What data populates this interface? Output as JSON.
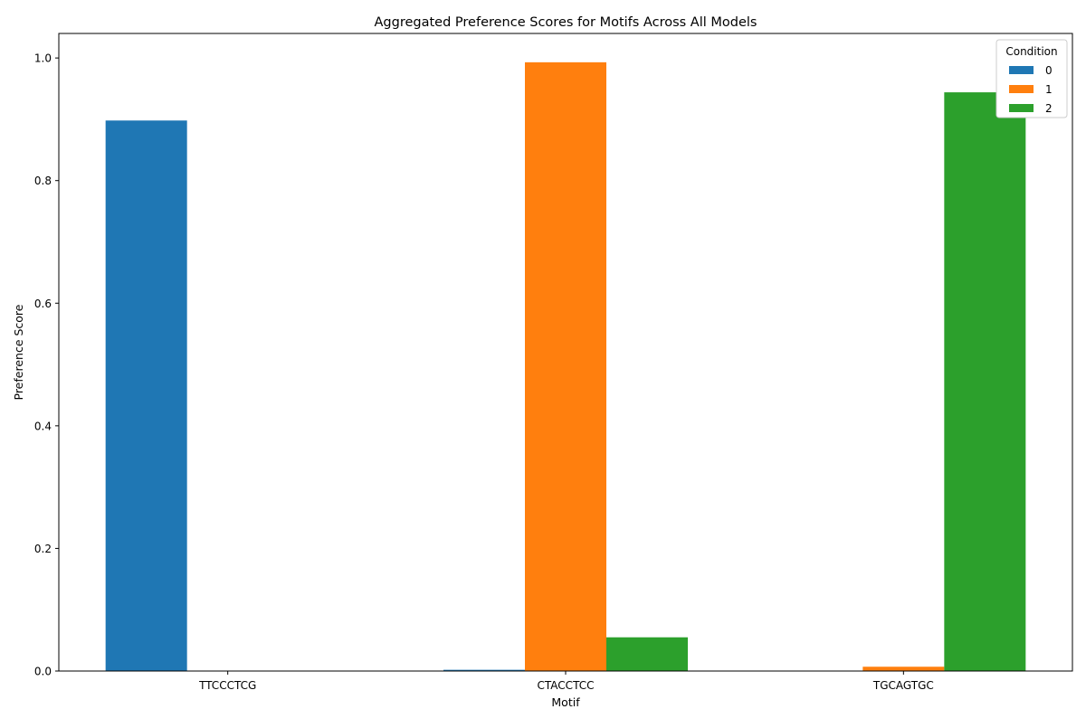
{
  "chart_data": {
    "type": "bar",
    "title": "Aggregated Preference Scores for Motifs Across All Models",
    "xlabel": "Motif",
    "ylabel": "Preference Score",
    "categories": [
      "TTCCCTCG",
      "CTACCTCC",
      "TGCAGTGC"
    ],
    "series": [
      {
        "name": "0",
        "color": "#1f77b4",
        "values": [
          0.898,
          0.002,
          0.0
        ]
      },
      {
        "name": "1",
        "color": "#ff7f0e",
        "values": [
          0.0,
          0.993,
          0.007
        ]
      },
      {
        "name": "2",
        "color": "#2ca02c",
        "values": [
          0.0,
          0.055,
          0.944
        ]
      }
    ],
    "ylim": [
      0,
      1.04
    ],
    "yticks": [
      0.0,
      0.2,
      0.4,
      0.6,
      0.8,
      1.0
    ],
    "ytick_labels": [
      "0.0",
      "0.2",
      "0.4",
      "0.6",
      "0.8",
      "1.0"
    ],
    "grid": false,
    "legend": {
      "title": "Condition",
      "placement": "top-right"
    }
  }
}
